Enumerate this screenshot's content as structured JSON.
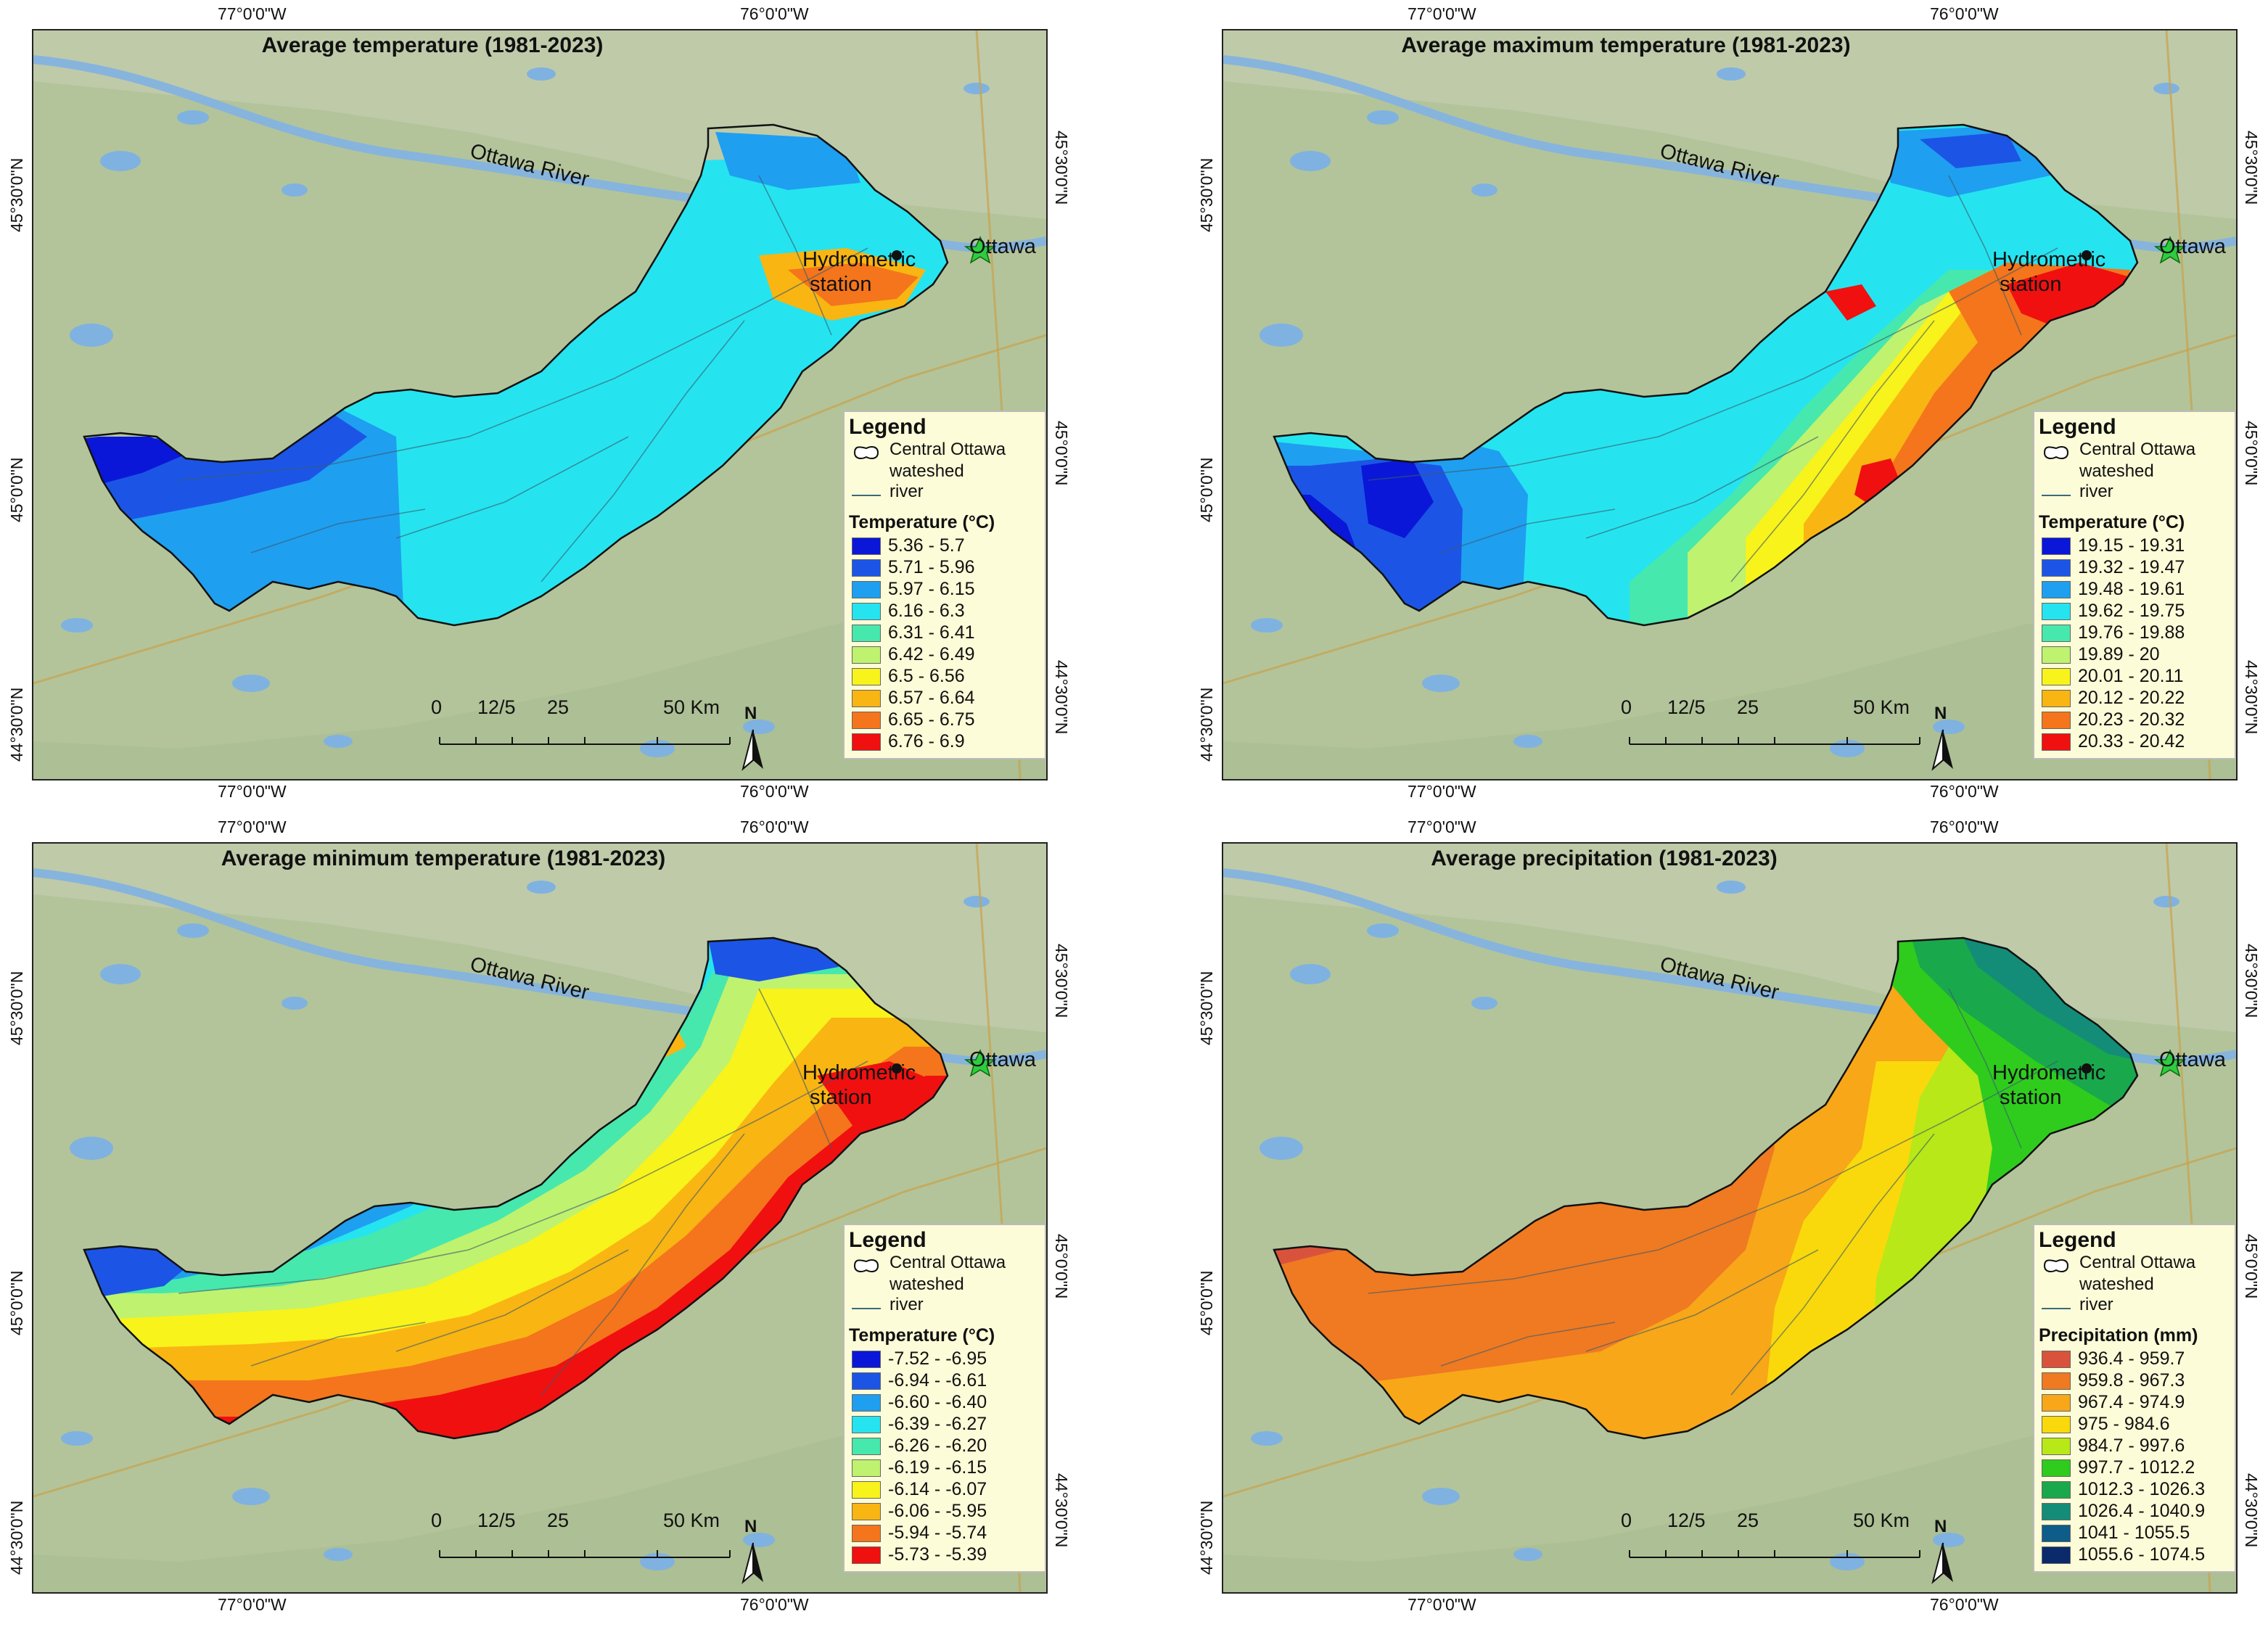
{
  "panels": [
    {
      "title": "Average temperature (1981-2023)",
      "city": "Ottawa",
      "river_label": "Ottawa River",
      "station": [
        "Hydrometric",
        "station"
      ],
      "legend": {
        "title": "Legend",
        "watershed": [
          "Central Ottawa",
          "wateshed"
        ],
        "river": "river",
        "subtitle": "Temperature (°C)",
        "classes": [
          {
            "label": "5.36 - 5.7",
            "color": "#0a17d8"
          },
          {
            "label": "5.71 - 5.96",
            "color": "#1c55e6"
          },
          {
            "label": "5.97 - 6.15",
            "color": "#1f9ff0"
          },
          {
            "label": "6.16 - 6.3",
            "color": "#25e4f0"
          },
          {
            "label": "6.31 - 6.41",
            "color": "#46e8ad"
          },
          {
            "label": "6.42 - 6.49",
            "color": "#bff26f"
          },
          {
            "label": "6.5 - 6.56",
            "color": "#f8f31b"
          },
          {
            "label": "6.57 - 6.64",
            "color": "#f9b512"
          },
          {
            "label": "6.65 - 6.75",
            "color": "#f4751c"
          },
          {
            "label": "6.76 - 6.9",
            "color": "#f01010"
          }
        ]
      }
    },
    {
      "title": "Average maximum temperature (1981-2023)",
      "city": "Ottawa",
      "river_label": "Ottawa River",
      "station": [
        "Hydrometric",
        "station"
      ],
      "legend": {
        "title": "Legend",
        "watershed": [
          "Central Ottawa",
          "wateshed"
        ],
        "river": "river",
        "subtitle": "Temperature (°C)",
        "classes": [
          {
            "label": "19.15 - 19.31",
            "color": "#0a17d8"
          },
          {
            "label": "19.32 - 19.47",
            "color": "#1c55e6"
          },
          {
            "label": "19.48 - 19.61",
            "color": "#1f9ff0"
          },
          {
            "label": "19.62 - 19.75",
            "color": "#25e4f0"
          },
          {
            "label": "19.76 - 19.88",
            "color": "#46e8ad"
          },
          {
            "label": "19.89 - 20",
            "color": "#bff26f"
          },
          {
            "label": "20.01 - 20.11",
            "color": "#f8f31b"
          },
          {
            "label": "20.12 - 20.22",
            "color": "#f9b512"
          },
          {
            "label": "20.23 - 20.32",
            "color": "#f4751c"
          },
          {
            "label": "20.33 - 20.42",
            "color": "#f01010"
          }
        ]
      }
    },
    {
      "title": "Average minimum temperature (1981-2023)",
      "city": "Ottawa",
      "river_label": "Ottawa River",
      "station": [
        "Hydrometric",
        "station"
      ],
      "legend": {
        "title": "Legend",
        "watershed": [
          "Central Ottawa",
          "wateshed"
        ],
        "river": "river",
        "subtitle": "Temperature (°C)",
        "classes": [
          {
            "label": "-7.52 - -6.95",
            "color": "#0a17d8"
          },
          {
            "label": "-6.94 - -6.61",
            "color": "#1c55e6"
          },
          {
            "label": "-6.60 - -6.40",
            "color": "#1f9ff0"
          },
          {
            "label": "-6.39 - -6.27",
            "color": "#25e4f0"
          },
          {
            "label": "-6.26 - -6.20",
            "color": "#46e8ad"
          },
          {
            "label": "-6.19 - -6.15",
            "color": "#bff26f"
          },
          {
            "label": "-6.14 - -6.07",
            "color": "#f8f31b"
          },
          {
            "label": "-6.06 - -5.95",
            "color": "#f9b512"
          },
          {
            "label": "-5.94 - -5.74",
            "color": "#f4751c"
          },
          {
            "label": "-5.73 - -5.39",
            "color": "#f01010"
          }
        ]
      }
    },
    {
      "title": "Average precipitation (1981-2023)",
      "city": "Ottawa",
      "river_label": "Ottawa River",
      "station": [
        "Hydrometric",
        "station"
      ],
      "legend": {
        "title": "Legend",
        "watershed": [
          "Central Ottawa",
          "wateshed"
        ],
        "river": "river",
        "subtitle": "Precipitation (mm)",
        "classes": [
          {
            "label": "936.4 - 959.7",
            "color": "#d9533c"
          },
          {
            "label": "959.8 - 967.3",
            "color": "#ef7a22"
          },
          {
            "label": "967.4 - 974.9",
            "color": "#f7a718"
          },
          {
            "label": "975 - 984.6",
            "color": "#f9d90c"
          },
          {
            "label": "984.7 - 997.6",
            "color": "#b8e817"
          },
          {
            "label": "997.7 - 1012.2",
            "color": "#2fcc1e"
          },
          {
            "label": "1012.3 - 1026.3",
            "color": "#1aa84c"
          },
          {
            "label": "1026.4 - 1040.9",
            "color": "#138d78"
          },
          {
            "label": "1041 - 1055.5",
            "color": "#0e5c8a"
          },
          {
            "label": "1055.6 - 1074.5",
            "color": "#0b2a6b"
          }
        ]
      }
    }
  ],
  "graticule": {
    "lon_west": "77°0'0\"W",
    "lon_east": "76°0'0\"W",
    "lat_north": "45°30'0\"N",
    "lat_mid": "45°0'0\"N",
    "lat_south": "44°30'0\"N"
  },
  "scale_bar": [
    "0",
    "12/5",
    "25",
    "50 Km"
  ],
  "north": "N"
}
